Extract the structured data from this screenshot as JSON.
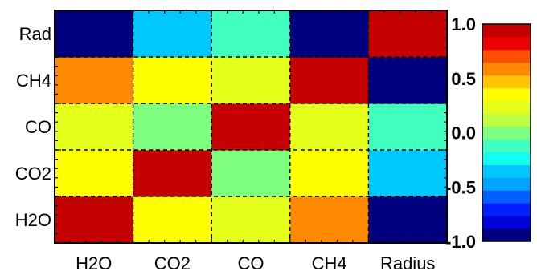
{
  "chart_data": {
    "type": "heatmap",
    "title": "",
    "xlabel": "",
    "ylabel": "",
    "x_categories": [
      "H2O",
      "CO2",
      "CO",
      "CH4",
      "Radius"
    ],
    "y_categories": [
      "H2O",
      "CO2",
      "CO",
      "CH4",
      "Rad"
    ],
    "values": [
      [
        1.0,
        0.4,
        0.2,
        0.6,
        -0.9
      ],
      [
        0.4,
        1.0,
        0.05,
        0.35,
        -0.4
      ],
      [
        0.2,
        0.05,
        1.0,
        0.25,
        -0.15
      ],
      [
        0.6,
        0.35,
        0.25,
        1.0,
        -0.9
      ],
      [
        -0.9,
        -0.4,
        -0.15,
        -0.9,
        1.0
      ]
    ],
    "colorbar": {
      "range": [
        -1.0,
        1.0
      ],
      "ticks": [
        "1.0",
        "0.5",
        "0.0",
        "-0.5",
        "-1.0"
      ],
      "tick_values": [
        1.0,
        0.5,
        0.0,
        -0.5,
        -1.0
      ],
      "colormap": [
        "#00007f",
        "#0000d9",
        "#0020ff",
        "#0060ff",
        "#00a4ff",
        "#00c8ff",
        "#10ffef",
        "#40ffbf",
        "#7fff7f",
        "#bfff3f",
        "#e4ff1a",
        "#ffff00",
        "#ffc600",
        "#ff8900",
        "#ff4f00",
        "#ef0000",
        "#c40000"
      ]
    },
    "grid": true,
    "grid_style": "dashed"
  }
}
